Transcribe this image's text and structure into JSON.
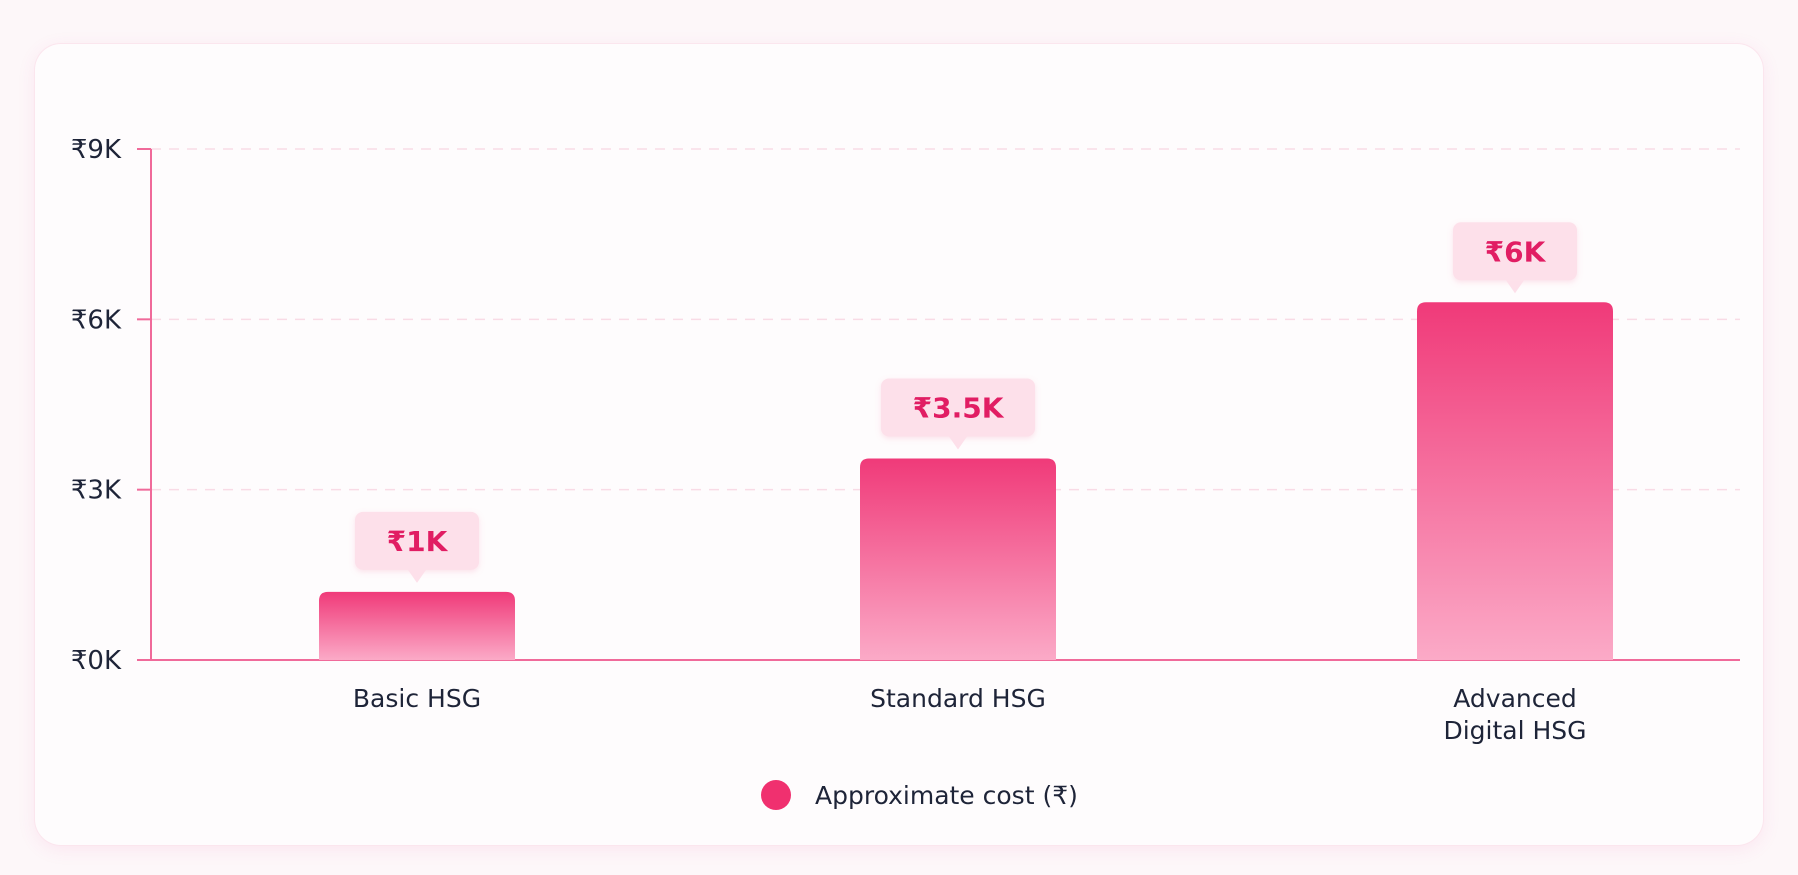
{
  "chart_data": {
    "type": "bar",
    "categories": [
      [
        "Basic HSG"
      ],
      [
        "Standard HSG"
      ],
      [
        "Advanced",
        "Digital HSG"
      ]
    ],
    "series": [
      {
        "name": "Approximate cost (₹)",
        "values": [
          1200,
          3550,
          6300
        ]
      }
    ],
    "data_labels": [
      "₹1K",
      "₹3.5K",
      "₹6K"
    ],
    "y_ticks": [
      0,
      3000,
      6000,
      9000
    ],
    "y_tick_labels": [
      "₹0K",
      "₹3K",
      "₹6K",
      "₹9K"
    ],
    "ylim": [
      0,
      9000
    ],
    "grid": true,
    "legend_position": "bottom-center",
    "colors": {
      "bar_top": "#f03a79",
      "bar_bottom": "#fbaac7",
      "axis": "#f06a9a",
      "grid": "#f9dbe6",
      "label_bg": "#fde0ea",
      "label_text": "#e11d63",
      "legend_dot": "#f0306f"
    }
  }
}
